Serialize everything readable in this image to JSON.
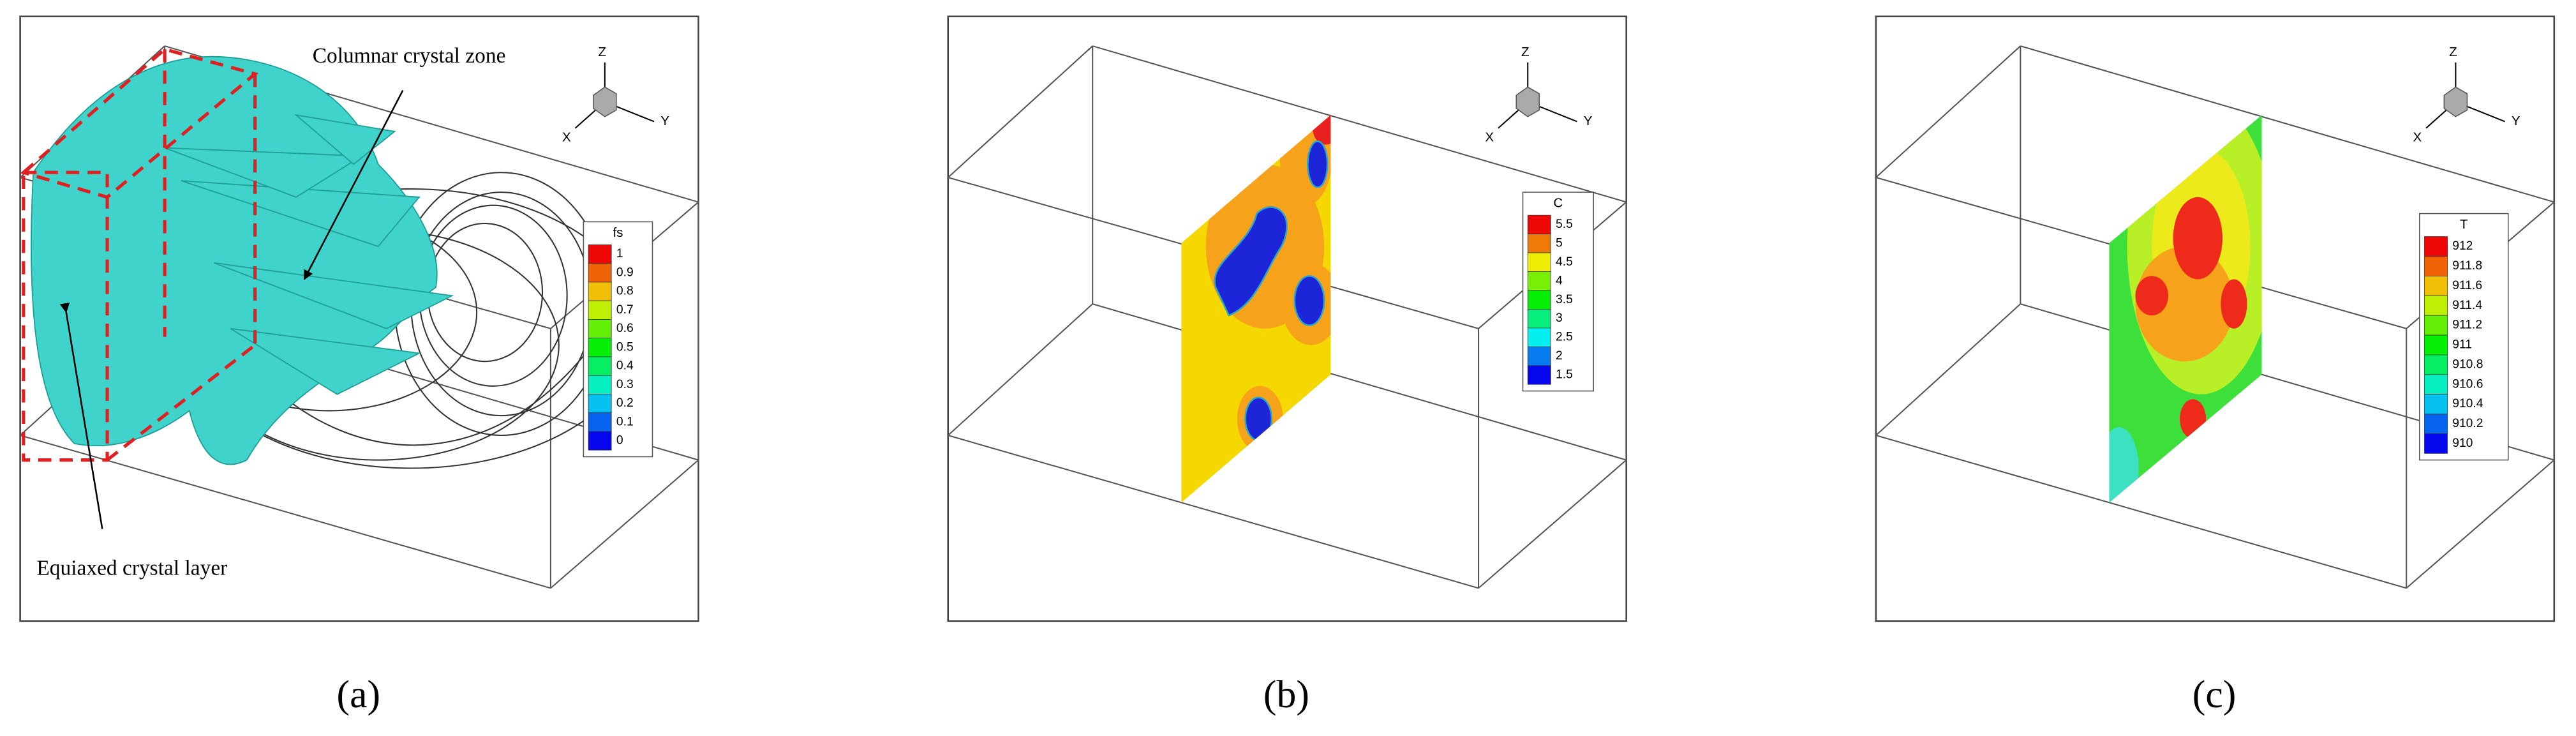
{
  "panels": [
    {
      "label": "(a)",
      "annotations": [
        "Columnar crystal zone",
        "Equiaxed crystal layer"
      ],
      "axes": [
        "Z",
        "Y",
        "X"
      ],
      "legend": {
        "title": "fs",
        "ticks": [
          1,
          0.9,
          0.8,
          0.7,
          0.6,
          0.5,
          0.4,
          0.3,
          0.2,
          0.1,
          0
        ]
      }
    },
    {
      "label": "(b)",
      "axes": [
        "Z",
        "Y",
        "X"
      ],
      "legend": {
        "title": "C",
        "ticks": [
          5.5,
          5,
          4.5,
          4,
          3.5,
          3,
          2.5,
          2,
          1.5
        ]
      }
    },
    {
      "label": "(c)",
      "axes": [
        "Z",
        "Y",
        "X"
      ],
      "legend": {
        "title": "T",
        "ticks": [
          912,
          911.8,
          911.6,
          911.4,
          911.2,
          911,
          910.8,
          910.6,
          910.4,
          910.2,
          910
        ]
      }
    }
  ]
}
